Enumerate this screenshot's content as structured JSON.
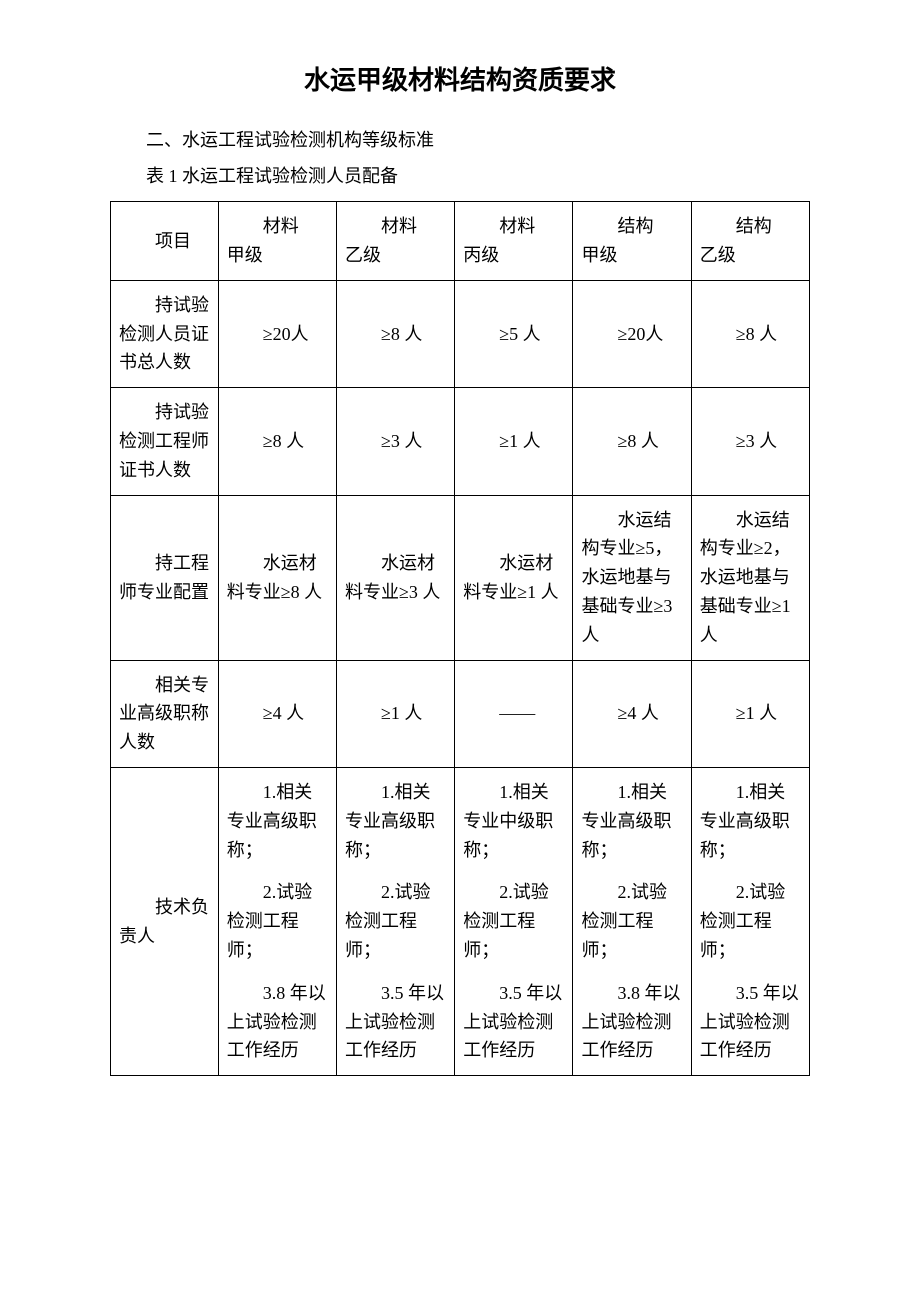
{
  "title": "水运甲级材料结构资质要求",
  "subtitle": "二、水运工程试验检测机构等级标准",
  "table_caption": "表 1 水运工程试验检测人员配备",
  "table": {
    "columns": [
      {
        "line1": "项目",
        "line2": ""
      },
      {
        "line1": "材料",
        "line2": "甲级"
      },
      {
        "line1": "材料",
        "line2": "乙级"
      },
      {
        "line1": "材料",
        "line2": "丙级"
      },
      {
        "line1": "结构",
        "line2": "甲级"
      },
      {
        "line1": "结构",
        "line2": "乙级"
      }
    ],
    "rows": [
      {
        "label": "持试验检测人员证书总人数",
        "cells": [
          "≥20人",
          "≥8 人",
          "≥5 人",
          "≥20人",
          "≥8 人"
        ]
      },
      {
        "label": "持试验检测工程师证书人数",
        "cells": [
          "≥8 人",
          "≥3 人",
          "≥1 人",
          "≥8 人",
          "≥3 人"
        ]
      },
      {
        "label": "持工程师专业配置",
        "cells": [
          "水运材料专业≥8 人",
          "水运材料专业≥3 人",
          "水运材料专业≥1 人",
          "水运结构专业≥5，水运地基与基础专业≥3人",
          "水运结构专业≥2，水运地基与基础专业≥1人"
        ]
      },
      {
        "label": "相关专业高级职称人数",
        "cells": [
          "≥4 人",
          "≥1 人",
          "——",
          "≥4 人",
          "≥1 人"
        ]
      },
      {
        "label": "技术负责人",
        "multi": true,
        "cells": [
          [
            "1.相关专业高级职称；",
            "2.试验检测工程师；",
            "3.8 年以上试验检测工作经历"
          ],
          [
            "1.相关专业高级职称；",
            "2.试验检测工程师；",
            "3.5 年以上试验检测工作经历"
          ],
          [
            "1.相关专业中级职称；",
            "2.试验检测工程师；",
            "3.5 年以上试验检测工作经历"
          ],
          [
            "1.相关专业高级职称；",
            "2.试验检测工程师；",
            "3.8 年以上试验检测工作经历"
          ],
          [
            "1.相关专业高级职称；",
            "2.试验检测工程师；",
            "3.5 年以上试验检测工作经历"
          ]
        ]
      }
    ]
  }
}
